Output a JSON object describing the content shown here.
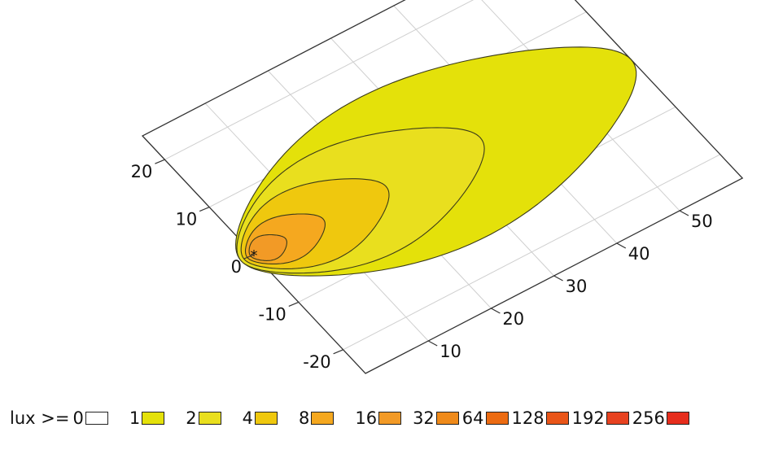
{
  "chart_data": {
    "type": "contour",
    "title": "",
    "xlabel": "",
    "ylabel": "",
    "x_axis": {
      "ticks": [
        10,
        20,
        30,
        40,
        50
      ],
      "range": [
        0,
        60
      ]
    },
    "y_axis": {
      "ticks": [
        -20,
        -10,
        0,
        10,
        20
      ],
      "range": [
        -25,
        25
      ]
    },
    "grid": true,
    "source_marker": {
      "x": 0,
      "y": 0,
      "symbol": "*"
    },
    "legend_prefix": "lux >=",
    "levels": [
      {
        "value": "0",
        "color": "#ffffff"
      },
      {
        "value": "1",
        "color": "#e4e10a"
      },
      {
        "value": "2",
        "color": "#e9df1e"
      },
      {
        "value": "4",
        "color": "#efc80e"
      },
      {
        "value": "8",
        "color": "#f5a81f"
      },
      {
        "value": "16",
        "color": "#f29a26"
      },
      {
        "value": "32",
        "color": "#ef8a1a"
      },
      {
        "value": "64",
        "color": "#ec6b12"
      },
      {
        "value": "128",
        "color": "#e95518"
      },
      {
        "value": "192",
        "color": "#e74220"
      },
      {
        "value": "256",
        "color": "#e62d1c"
      }
    ],
    "contours": [
      {
        "level": "1",
        "x_extent": [
          -2,
          60
        ],
        "y_extent": [
          -13,
          13
        ]
      },
      {
        "level": "2",
        "x_extent": [
          -2,
          36
        ],
        "y_extent": [
          -9,
          9
        ]
      },
      {
        "level": "4",
        "x_extent": [
          -1.5,
          21
        ],
        "y_extent": [
          -6,
          6
        ]
      },
      {
        "level": "8",
        "x_extent": [
          -1,
          11
        ],
        "y_extent": [
          -3.5,
          3.5
        ]
      },
      {
        "level": "16",
        "x_extent": [
          -0.5,
          5
        ],
        "y_extent": [
          -2,
          2
        ]
      }
    ]
  }
}
